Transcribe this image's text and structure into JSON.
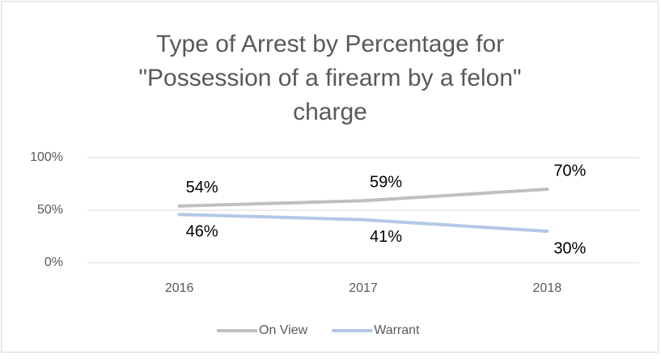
{
  "chart_data": {
    "type": "line",
    "title": "Type of Arrest by Percentage for \"Possession of a firearm by a felon\" charge",
    "categories": [
      "2016",
      "2017",
      "2018"
    ],
    "series": [
      {
        "name": "On View",
        "color": "#bfbfbf",
        "values": [
          54,
          59,
          70
        ],
        "value_labels": [
          "54%",
          "59%",
          "70%"
        ]
      },
      {
        "name": "Warrant",
        "color": "#b4c7e7",
        "values": [
          46,
          41,
          30
        ],
        "value_labels": [
          "46%",
          "41%",
          "30%"
        ]
      }
    ],
    "ylim": [
      0,
      100
    ],
    "yticks": [
      {
        "value": 0,
        "label": "0%"
      },
      {
        "value": 50,
        "label": "50%"
      },
      {
        "value": 100,
        "label": "100%"
      }
    ],
    "grid": true,
    "legend": "bottom"
  }
}
